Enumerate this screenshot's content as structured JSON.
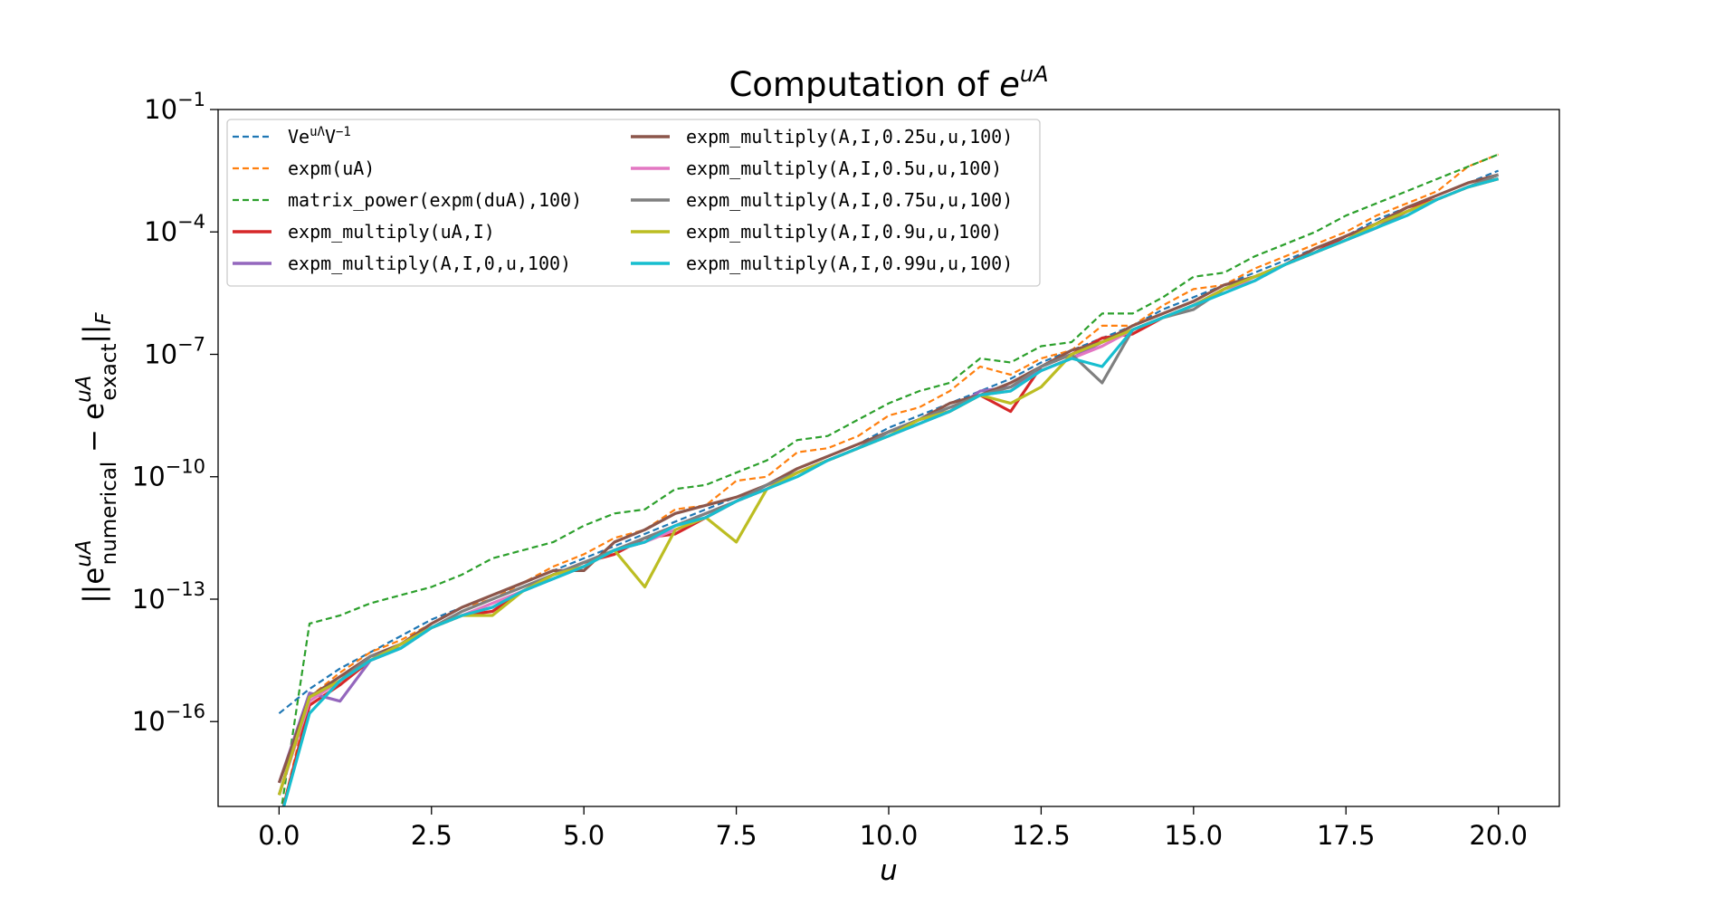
{
  "chart_data": {
    "type": "line",
    "title_main": "Computation of ",
    "title_base": "e",
    "title_sup": "uA",
    "xlabel": "u",
    "ylabel_parts": {
      "bars_open": "||e",
      "sub1": "numerical",
      "sup1": "uA",
      "minus": " − e",
      "sub2": "exact",
      "sup2": "uA",
      "bars_close": "||",
      "subF": "F"
    },
    "yscale": "log",
    "y_values_are": "log10",
    "xlim": [
      -1,
      21
    ],
    "ylim_log10": [
      -18.08,
      -1
    ],
    "xticks": [
      0,
      2.5,
      5,
      7.5,
      10,
      12.5,
      15,
      17.5,
      20
    ],
    "xtick_labels": [
      "0.0",
      "2.5",
      "5.0",
      "7.5",
      "10.0",
      "12.5",
      "15.0",
      "17.5",
      "20.0"
    ],
    "yticks_log10": [
      -1,
      -4,
      -7,
      -10,
      -13,
      -16
    ],
    "ytick_labels": [
      {
        "base": "10",
        "exp": "−1"
      },
      {
        "base": "10",
        "exp": "−4"
      },
      {
        "base": "10",
        "exp": "−7"
      },
      {
        "base": "10",
        "exp": "−10"
      },
      {
        "base": "10",
        "exp": "−13"
      },
      {
        "base": "10",
        "exp": "−16"
      }
    ],
    "legend_placement": "upper-left",
    "x": [
      0,
      0.5,
      1,
      1.5,
      2,
      2.5,
      3,
      3.5,
      4,
      4.5,
      5,
      5.5,
      6,
      6.5,
      7,
      7.5,
      8,
      8.5,
      9,
      9.5,
      10,
      10.5,
      11,
      11.5,
      12,
      12.5,
      13,
      13.5,
      14,
      14.5,
      15,
      15.5,
      16,
      16.5,
      17,
      17.5,
      18,
      18.5,
      19,
      19.5,
      20
    ],
    "series": [
      {
        "name": "VeuΛV-1",
        "label_parts": [
          "Ve",
          "uΛ",
          "V",
          "−1"
        ],
        "color": "#1f77b4",
        "style": "dashed",
        "values": [
          -15.8,
          -15.2,
          -14.7,
          -14.3,
          -13.9,
          -13.5,
          -13.2,
          -12.9,
          -12.6,
          -12.3,
          -12.0,
          -11.7,
          -11.4,
          -11.1,
          -10.8,
          -10.5,
          -10.2,
          -9.8,
          -9.5,
          -9.2,
          -8.8,
          -8.5,
          -8.2,
          -7.9,
          -7.6,
          -7.2,
          -6.9,
          -6.6,
          -6.3,
          -5.9,
          -5.6,
          -5.3,
          -5.0,
          -4.7,
          -4.4,
          -4.1,
          -3.7,
          -3.4,
          -3.1,
          -2.8,
          -2.5
        ]
      },
      {
        "name": "expm(uA)",
        "color": "#ff7f0e",
        "style": "dashed",
        "values": [
          -18.5,
          -15.4,
          -14.8,
          -14.3,
          -14.0,
          -13.6,
          -13.2,
          -13.0,
          -12.6,
          -12.2,
          -11.9,
          -11.5,
          -11.3,
          -10.8,
          -10.7,
          -10.1,
          -10.0,
          -9.4,
          -9.3,
          -9.0,
          -8.5,
          -8.3,
          -7.9,
          -7.3,
          -7.5,
          -7.1,
          -6.9,
          -6.3,
          -6.3,
          -5.8,
          -5.4,
          -5.3,
          -4.9,
          -4.6,
          -4.3,
          -4.0,
          -3.6,
          -3.3,
          -3.0,
          -2.4,
          -2.1
        ]
      },
      {
        "name": "matrix_power(expm(duA),100)",
        "color": "#2ca02c",
        "style": "dashed",
        "values": [
          -18.5,
          -13.6,
          -13.4,
          -13.1,
          -12.9,
          -12.7,
          -12.4,
          -12.0,
          -11.8,
          -11.6,
          -11.2,
          -10.9,
          -10.8,
          -10.3,
          -10.2,
          -9.9,
          -9.6,
          -9.1,
          -9.0,
          -8.6,
          -8.2,
          -7.9,
          -7.7,
          -7.1,
          -7.2,
          -6.8,
          -6.7,
          -6.0,
          -6.0,
          -5.6,
          -5.1,
          -5.0,
          -4.6,
          -4.3,
          -4.0,
          -3.6,
          -3.3,
          -3.0,
          -2.7,
          -2.4,
          -2.1
        ]
      },
      {
        "name": "expm_multiply(uA,I)",
        "color": "#d62728",
        "style": "solid",
        "values": [
          -18.5,
          -15.6,
          -15.1,
          -14.5,
          -14.1,
          -13.7,
          -13.4,
          -13.3,
          -12.8,
          -12.4,
          -12.1,
          -11.9,
          -11.5,
          -11.4,
          -11.0,
          -10.6,
          -10.3,
          -9.9,
          -9.6,
          -9.3,
          -8.9,
          -8.6,
          -8.4,
          -8.0,
          -8.4,
          -7.3,
          -7.0,
          -6.6,
          -6.5,
          -6.1,
          -5.8,
          -5.4,
          -5.1,
          -4.8,
          -4.5,
          -4.1,
          -3.8,
          -3.4,
          -3.2,
          -2.9,
          -2.7
        ]
      },
      {
        "name": "expm_multiply(A,I,0,u,100)",
        "color": "#9467bd",
        "style": "solid",
        "values": [
          -17.5,
          -15.3,
          -15.5,
          -14.5,
          -14.2,
          -13.7,
          -13.4,
          -13.2,
          -12.8,
          -12.5,
          -12.2,
          -11.8,
          -11.6,
          -11.2,
          -10.9,
          -10.6,
          -10.2,
          -9.9,
          -9.6,
          -9.3,
          -8.9,
          -8.6,
          -8.4,
          -7.9,
          -7.8,
          -7.4,
          -7.1,
          -6.7,
          -6.4,
          -6.1,
          -5.8,
          -5.4,
          -5.1,
          -4.8,
          -4.5,
          -4.2,
          -3.9,
          -3.5,
          -3.2,
          -2.9,
          -2.7
        ]
      },
      {
        "name": "expm_multiply(A,I,0.25u,u,100)",
        "color": "#8c564b",
        "style": "solid",
        "values": [
          -17.5,
          -15.4,
          -14.9,
          -14.4,
          -14.1,
          -13.6,
          -13.2,
          -12.9,
          -12.6,
          -12.3,
          -12.3,
          -11.6,
          -11.3,
          -10.9,
          -10.7,
          -10.5,
          -10.2,
          -9.8,
          -9.5,
          -9.2,
          -8.9,
          -8.6,
          -8.2,
          -8.0,
          -7.7,
          -7.3,
          -6.9,
          -6.7,
          -6.3,
          -6.0,
          -5.7,
          -5.3,
          -5.1,
          -4.8,
          -4.4,
          -4.1,
          -3.8,
          -3.4,
          -3.1,
          -2.8,
          -2.6
        ]
      },
      {
        "name": "expm_multiply(A,I,0.5u,u,100)",
        "color": "#e377c2",
        "style": "solid",
        "values": [
          -17.8,
          -15.5,
          -15.0,
          -14.5,
          -14.1,
          -13.7,
          -13.4,
          -13.1,
          -12.8,
          -12.4,
          -12.2,
          -11.8,
          -11.6,
          -11.3,
          -11.0,
          -10.6,
          -10.3,
          -9.9,
          -9.6,
          -9.3,
          -9.0,
          -8.7,
          -8.4,
          -8.0,
          -7.9,
          -7.4,
          -7.1,
          -6.8,
          -6.4,
          -6.1,
          -5.8,
          -5.4,
          -5.2,
          -4.8,
          -4.5,
          -4.2,
          -3.9,
          -3.5,
          -3.2,
          -2.9,
          -2.7
        ]
      },
      {
        "name": "expm_multiply(A,I,0.75u,u,100)",
        "color": "#7f7f7f",
        "style": "solid",
        "values": [
          -17.8,
          -15.4,
          -15.0,
          -14.4,
          -14.2,
          -13.7,
          -13.3,
          -13.0,
          -12.7,
          -12.4,
          -12.1,
          -11.8,
          -11.5,
          -11.2,
          -10.9,
          -10.6,
          -10.2,
          -9.9,
          -9.6,
          -9.3,
          -8.9,
          -8.6,
          -8.3,
          -8.0,
          -7.8,
          -7.3,
          -7.0,
          -7.7,
          -6.4,
          -6.1,
          -5.9,
          -5.4,
          -5.1,
          -4.8,
          -4.5,
          -4.2,
          -3.9,
          -3.5,
          -3.2,
          -2.9,
          -2.6
        ]
      },
      {
        "name": "expm_multiply(A,I,0.9u,u,100)",
        "color": "#bcbd22",
        "style": "solid",
        "values": [
          -17.8,
          -15.4,
          -15.0,
          -14.5,
          -14.1,
          -13.7,
          -13.4,
          -13.4,
          -12.8,
          -12.4,
          -12.2,
          -11.8,
          -12.7,
          -11.3,
          -11.0,
          -11.6,
          -10.3,
          -9.9,
          -9.6,
          -9.3,
          -9.0,
          -8.6,
          -8.4,
          -8.0,
          -8.2,
          -7.8,
          -7.0,
          -6.7,
          -6.4,
          -6.1,
          -5.8,
          -5.4,
          -5.1,
          -4.8,
          -4.5,
          -4.2,
          -3.8,
          -3.5,
          -3.2,
          -2.9,
          -2.7
        ]
      },
      {
        "name": "expm_multiply(A,I,0.99u,u,100)",
        "color": "#17becf",
        "style": "solid",
        "values": [
          -18.5,
          -15.8,
          -15.0,
          -14.5,
          -14.2,
          -13.7,
          -13.4,
          -13.2,
          -12.8,
          -12.5,
          -12.2,
          -11.8,
          -11.6,
          -11.2,
          -11.0,
          -10.6,
          -10.3,
          -10.0,
          -9.6,
          -9.3,
          -9.0,
          -8.7,
          -8.4,
          -8.0,
          -7.9,
          -7.4,
          -7.1,
          -7.3,
          -6.4,
          -6.1,
          -5.8,
          -5.5,
          -5.2,
          -4.8,
          -4.5,
          -4.2,
          -3.9,
          -3.6,
          -3.2,
          -2.9,
          -2.7
        ]
      }
    ]
  }
}
